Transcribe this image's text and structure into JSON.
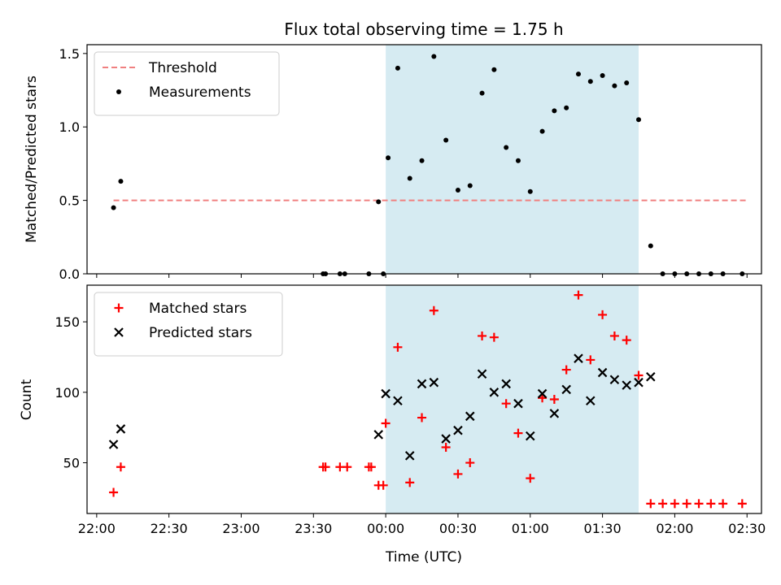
{
  "chart_data": [
    {
      "type": "scatter",
      "title": "Flux total observing time = 1.75 h",
      "ylabel": "Matched/Predicted stars",
      "xlabel": "",
      "xlim": [
        "21:56",
        "02:36"
      ],
      "ylim": [
        0,
        1.56
      ],
      "yticks": [
        0.0,
        0.5,
        1.0,
        1.5
      ],
      "ytick_labels": [
        "0.0",
        "0.5",
        "1.0",
        "1.5"
      ],
      "shaded_interval": [
        "00:00",
        "01:45"
      ],
      "legend_position": "top-left",
      "threshold": {
        "name": "Threshold",
        "y": 0.5,
        "x_start": "22:07",
        "x_end": "02:30",
        "color": "#f08080"
      },
      "series": [
        {
          "name": "Measurements",
          "marker": "dot",
          "color": "#000000",
          "points": [
            [
              "22:07",
              0.45
            ],
            [
              "22:10",
              0.63
            ],
            [
              "23:34",
              0.0
            ],
            [
              "23:35",
              0.0
            ],
            [
              "23:41",
              0.0
            ],
            [
              "23:43",
              0.0
            ],
            [
              "23:53",
              0.0
            ],
            [
              "23:57",
              0.49
            ],
            [
              "23:59",
              0.0
            ],
            [
              "00:01",
              0.79
            ],
            [
              "00:05",
              1.4
            ],
            [
              "00:10",
              0.65
            ],
            [
              "00:15",
              0.77
            ],
            [
              "00:20",
              1.48
            ],
            [
              "00:25",
              0.91
            ],
            [
              "00:30",
              0.57
            ],
            [
              "00:35",
              0.6
            ],
            [
              "00:40",
              1.23
            ],
            [
              "00:45",
              1.39
            ],
            [
              "00:50",
              0.86
            ],
            [
              "00:55",
              0.77
            ],
            [
              "01:00",
              0.56
            ],
            [
              "01:05",
              0.97
            ],
            [
              "01:10",
              1.11
            ],
            [
              "01:15",
              1.13
            ],
            [
              "01:20",
              1.36
            ],
            [
              "01:25",
              1.31
            ],
            [
              "01:30",
              1.35
            ],
            [
              "01:35",
              1.28
            ],
            [
              "01:40",
              1.3
            ],
            [
              "01:45",
              1.05
            ],
            [
              "01:50",
              0.19
            ],
            [
              "01:55",
              0.0
            ],
            [
              "02:00",
              0.0
            ],
            [
              "02:05",
              0.0
            ],
            [
              "02:10",
              0.0
            ],
            [
              "02:15",
              0.0
            ],
            [
              "02:20",
              0.0
            ],
            [
              "02:28",
              0.0
            ]
          ]
        }
      ]
    },
    {
      "type": "scatter",
      "title": "",
      "ylabel": "Count",
      "xlabel": "Time (UTC)",
      "xlim": [
        "21:56",
        "02:36"
      ],
      "xticks": [
        "22:00",
        "22:30",
        "23:00",
        "23:30",
        "00:00",
        "00:30",
        "01:00",
        "01:30",
        "02:00",
        "02:30"
      ],
      "ylim": [
        14,
        176
      ],
      "yticks": [
        50,
        100,
        150
      ],
      "ytick_labels": [
        "50",
        "100",
        "150"
      ],
      "shaded_interval": [
        "00:00",
        "01:45"
      ],
      "legend_position": "top-left",
      "series": [
        {
          "name": "Matched stars",
          "marker": "plus",
          "color": "#ff0000",
          "points": [
            [
              "22:07",
              29
            ],
            [
              "22:10",
              47
            ],
            [
              "23:34",
              47
            ],
            [
              "23:35",
              47
            ],
            [
              "23:41",
              47
            ],
            [
              "23:44",
              47
            ],
            [
              "23:53",
              47
            ],
            [
              "23:54",
              47
            ],
            [
              "23:57",
              34
            ],
            [
              "23:59",
              34
            ],
            [
              "00:00",
              78
            ],
            [
              "00:05",
              132
            ],
            [
              "00:10",
              36
            ],
            [
              "00:15",
              82
            ],
            [
              "00:20",
              158
            ],
            [
              "00:25",
              61
            ],
            [
              "00:30",
              42
            ],
            [
              "00:35",
              50
            ],
            [
              "00:40",
              140
            ],
            [
              "00:45",
              139
            ],
            [
              "00:50",
              92
            ],
            [
              "00:55",
              71
            ],
            [
              "01:00",
              39
            ],
            [
              "01:05",
              96
            ],
            [
              "01:10",
              95
            ],
            [
              "01:15",
              116
            ],
            [
              "01:20",
              169
            ],
            [
              "01:25",
              123
            ],
            [
              "01:30",
              155
            ],
            [
              "01:35",
              140
            ],
            [
              "01:40",
              137
            ],
            [
              "01:45",
              112
            ],
            [
              "01:50",
              21
            ],
            [
              "01:55",
              21
            ],
            [
              "02:00",
              21
            ],
            [
              "02:05",
              21
            ],
            [
              "02:10",
              21
            ],
            [
              "02:15",
              21
            ],
            [
              "02:20",
              21
            ],
            [
              "02:28",
              21
            ]
          ]
        },
        {
          "name": "Predicted stars",
          "marker": "x",
          "color": "#000000",
          "points": [
            [
              "22:07",
              63
            ],
            [
              "22:10",
              74
            ],
            [
              "23:57",
              70
            ],
            [
              "00:00",
              99
            ],
            [
              "00:05",
              94
            ],
            [
              "00:10",
              55
            ],
            [
              "00:15",
              106
            ],
            [
              "00:20",
              107
            ],
            [
              "00:25",
              67
            ],
            [
              "00:30",
              73
            ],
            [
              "00:35",
              83
            ],
            [
              "00:40",
              113
            ],
            [
              "00:45",
              100
            ],
            [
              "00:50",
              106
            ],
            [
              "00:55",
              92
            ],
            [
              "01:00",
              69
            ],
            [
              "01:05",
              99
            ],
            [
              "01:10",
              85
            ],
            [
              "01:15",
              102
            ],
            [
              "01:20",
              124
            ],
            [
              "01:25",
              94
            ],
            [
              "01:30",
              114
            ],
            [
              "01:35",
              109
            ],
            [
              "01:40",
              105
            ],
            [
              "01:45",
              107
            ],
            [
              "01:50",
              111
            ]
          ]
        }
      ]
    }
  ]
}
